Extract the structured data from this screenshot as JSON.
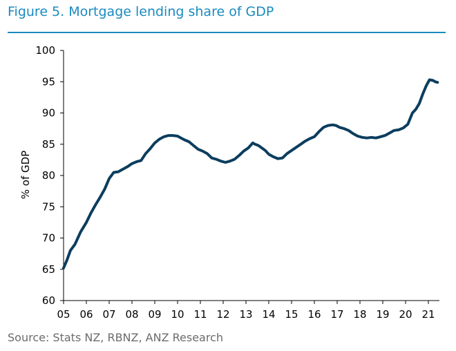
{
  "figure": {
    "title": "Figure 5. Mortgage lending share of GDP",
    "source": "Source: Stats NZ, RBNZ, ANZ Research"
  },
  "colors": {
    "accent": "#1a8bbf",
    "line": "#0c3d5e",
    "axis": "#000000"
  },
  "chart_data": {
    "type": "line",
    "title": "Mortgage lending share of GDP",
    "xlabel": "",
    "ylabel": "% of GDP",
    "ylim": [
      60,
      100
    ],
    "yticks": [
      60,
      65,
      70,
      75,
      80,
      85,
      90,
      95,
      100
    ],
    "xlim": [
      2005,
      2021.4
    ],
    "xtick_labels": [
      "05",
      "06",
      "07",
      "08",
      "09",
      "10",
      "11",
      "12",
      "13",
      "14",
      "15",
      "16",
      "17",
      "18",
      "19",
      "20",
      "21"
    ],
    "grid": false,
    "series": [
      {
        "name": "Mortgage lending share of GDP",
        "x": [
          2005.0,
          2005.15,
          2005.3,
          2005.5,
          2005.75,
          2006.0,
          2006.2,
          2006.4,
          2006.6,
          2006.8,
          2007.0,
          2007.2,
          2007.4,
          2007.5,
          2007.65,
          2007.8,
          2008.0,
          2008.2,
          2008.4,
          2008.6,
          2008.8,
          2009.0,
          2009.2,
          2009.4,
          2009.6,
          2009.8,
          2010.0,
          2010.15,
          2010.3,
          2010.5,
          2010.7,
          2010.9,
          2011.1,
          2011.3,
          2011.5,
          2011.7,
          2011.9,
          2012.1,
          2012.3,
          2012.5,
          2012.7,
          2012.9,
          2013.1,
          2013.3,
          2013.4,
          2013.55,
          2013.7,
          2013.85,
          2014.0,
          2014.2,
          2014.4,
          2014.6,
          2014.8,
          2015.0,
          2015.2,
          2015.4,
          2015.6,
          2015.8,
          2016.0,
          2016.2,
          2016.4,
          2016.6,
          2016.8,
          2016.95,
          2017.1,
          2017.3,
          2017.5,
          2017.7,
          2017.9,
          2018.1,
          2018.3,
          2018.5,
          2018.7,
          2018.9,
          2019.1,
          2019.3,
          2019.5,
          2019.7,
          2019.9,
          2020.1,
          2020.3,
          2020.45,
          2020.6,
          2020.75,
          2020.9,
          2021.05,
          2021.2,
          2021.3,
          2021.4
        ],
        "values": [
          65.2,
          66.5,
          68.0,
          69.0,
          71.0,
          72.5,
          74.0,
          75.3,
          76.5,
          77.8,
          79.5,
          80.5,
          80.6,
          80.8,
          81.1,
          81.4,
          81.9,
          82.2,
          82.4,
          83.5,
          84.3,
          85.2,
          85.8,
          86.2,
          86.4,
          86.4,
          86.3,
          86.0,
          85.7,
          85.4,
          84.8,
          84.2,
          83.9,
          83.5,
          82.8,
          82.6,
          82.3,
          82.1,
          82.3,
          82.6,
          83.2,
          83.9,
          84.4,
          85.2,
          85.0,
          84.8,
          84.4,
          84.0,
          83.4,
          83.0,
          82.7,
          82.8,
          83.5,
          84.0,
          84.5,
          85.0,
          85.5,
          85.9,
          86.2,
          87.0,
          87.7,
          88.0,
          88.1,
          88.0,
          87.7,
          87.5,
          87.2,
          86.7,
          86.3,
          86.1,
          86.0,
          86.1,
          86.0,
          86.2,
          86.4,
          86.8,
          87.2,
          87.3,
          87.6,
          88.2,
          90.0,
          90.6,
          91.5,
          93.0,
          94.3,
          95.3,
          95.2,
          95.0,
          94.9
        ]
      }
    ]
  }
}
